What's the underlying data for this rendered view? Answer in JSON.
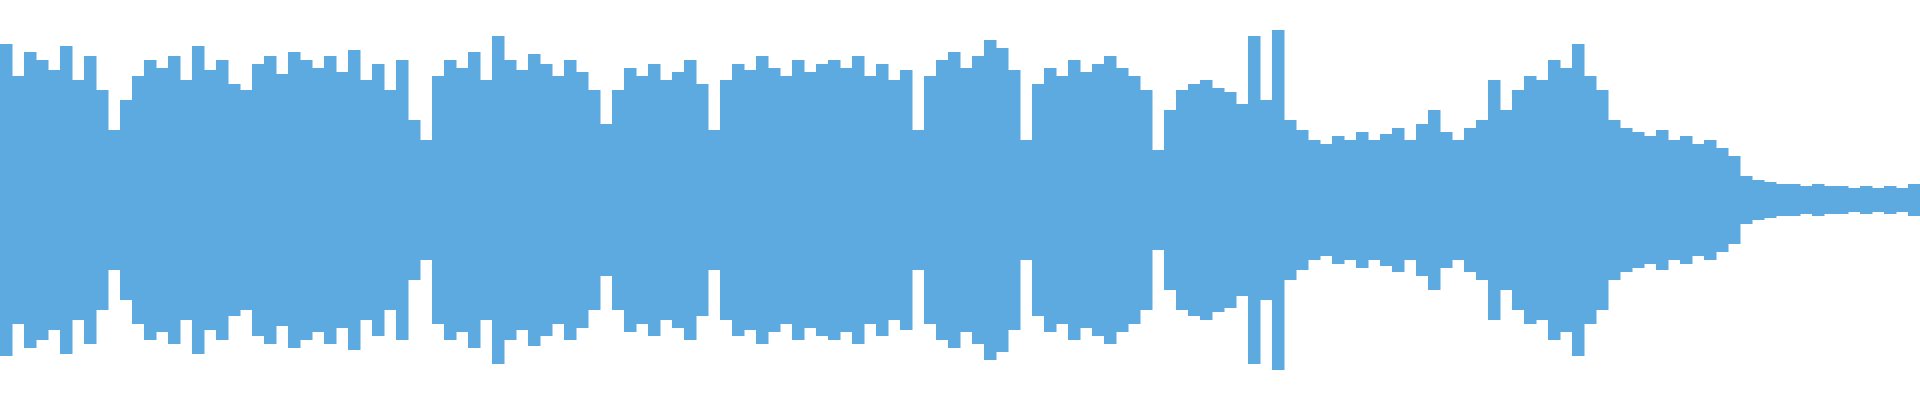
{
  "chart_data": {
    "type": "waveform",
    "color": "#5daae0",
    "ylim": [
      -1,
      1
    ],
    "values": [
      0.78,
      0.62,
      0.74,
      0.7,
      0.65,
      0.77,
      0.6,
      0.72,
      0.55,
      0.35,
      0.5,
      0.62,
      0.7,
      0.66,
      0.72,
      0.6,
      0.77,
      0.65,
      0.7,
      0.58,
      0.55,
      0.68,
      0.72,
      0.63,
      0.74,
      0.7,
      0.66,
      0.72,
      0.64,
      0.75,
      0.6,
      0.68,
      0.55,
      0.7,
      0.4,
      0.3,
      0.62,
      0.7,
      0.66,
      0.74,
      0.6,
      0.82,
      0.7,
      0.65,
      0.73,
      0.68,
      0.62,
      0.7,
      0.64,
      0.55,
      0.38,
      0.55,
      0.66,
      0.62,
      0.68,
      0.6,
      0.64,
      0.7,
      0.58,
      0.35,
      0.6,
      0.68,
      0.65,
      0.72,
      0.66,
      0.62,
      0.7,
      0.64,
      0.68,
      0.7,
      0.66,
      0.72,
      0.62,
      0.68,
      0.6,
      0.65,
      0.35,
      0.62,
      0.7,
      0.74,
      0.66,
      0.72,
      0.8,
      0.76,
      0.65,
      0.3,
      0.58,
      0.66,
      0.62,
      0.7,
      0.64,
      0.68,
      0.72,
      0.66,
      0.62,
      0.55,
      0.25,
      0.45,
      0.55,
      0.58,
      0.6,
      0.56,
      0.54,
      0.48,
      0.82,
      0.5,
      0.85,
      0.4,
      0.35,
      0.3,
      0.28,
      0.32,
      0.3,
      0.34,
      0.3,
      0.33,
      0.36,
      0.3,
      0.38,
      0.45,
      0.34,
      0.3,
      0.36,
      0.4,
      0.6,
      0.45,
      0.55,
      0.62,
      0.6,
      0.7,
      0.66,
      0.78,
      0.62,
      0.55,
      0.4,
      0.36,
      0.34,
      0.32,
      0.35,
      0.3,
      0.32,
      0.28,
      0.3,
      0.26,
      0.22,
      0.12,
      0.1,
      0.09,
      0.08,
      0.08,
      0.07,
      0.08,
      0.07,
      0.07,
      0.06,
      0.07,
      0.06,
      0.07,
      0.06,
      0.08
    ]
  }
}
